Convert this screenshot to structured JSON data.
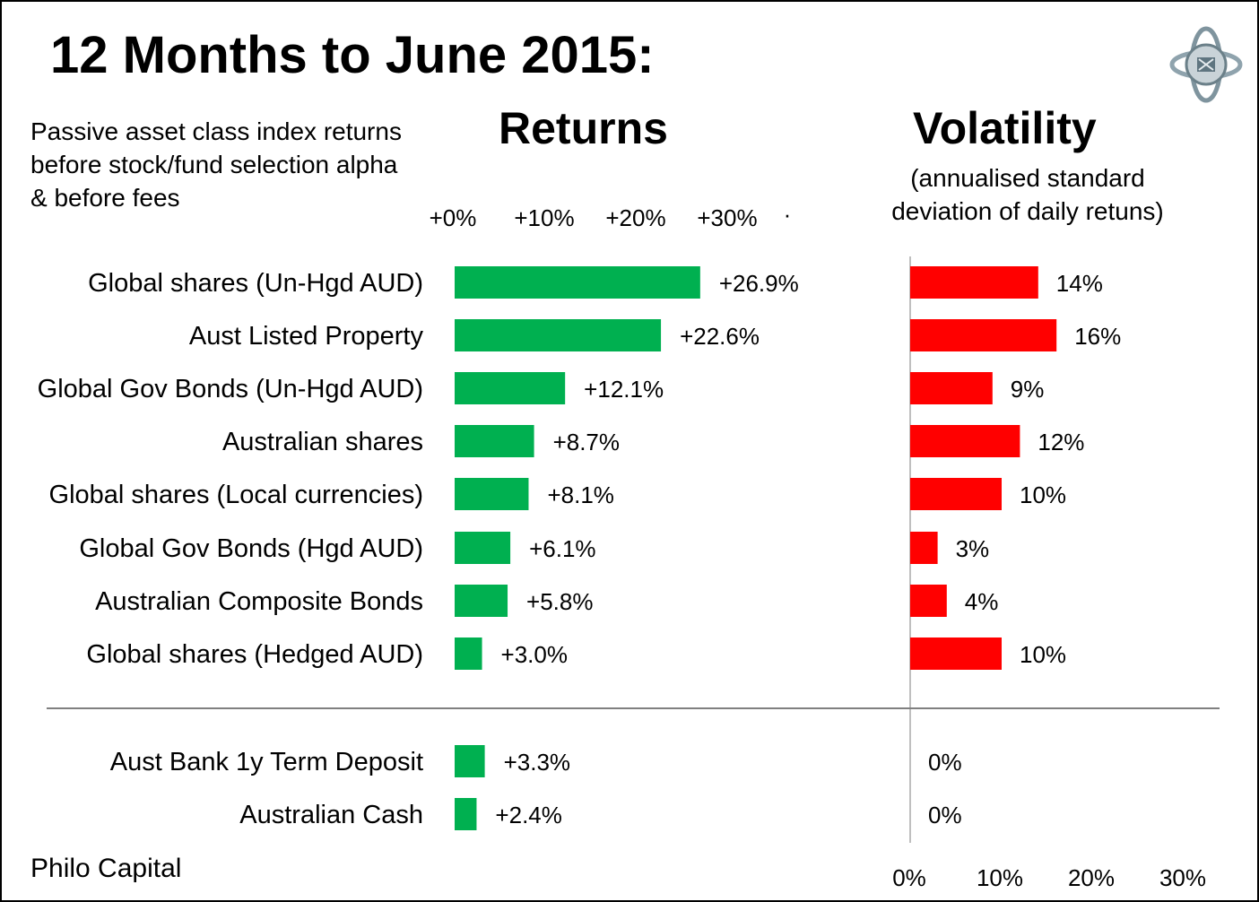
{
  "title": "12 Months to June 2015:",
  "subtitle": "Passive asset class index returns before stock/fund selection alpha & before fees",
  "footer": "Philo Capital",
  "chart_data": [
    {
      "type": "bar",
      "orientation": "horizontal",
      "title": "Returns",
      "color": "#00b050",
      "categories": [
        "Global shares (Un-Hgd AUD)",
        "Aust Listed Property",
        "Global Gov Bonds (Un-Hgd AUD)",
        "Australian shares",
        "Global shares (Local currencies)",
        "Global Gov Bonds (Hgd AUD)",
        "Australian Composite Bonds",
        "Global shares (Hedged AUD)",
        "Aust Bank 1y Term Deposit",
        "Australian Cash"
      ],
      "values": [
        26.9,
        22.6,
        12.1,
        8.7,
        8.1,
        6.1,
        5.8,
        3.0,
        3.3,
        2.4
      ],
      "data_labels": [
        "+26.9%",
        "+22.6%",
        "+12.1%",
        "+8.7%",
        "+8.1%",
        "+6.1%",
        "+5.8%",
        "+3.0%",
        "+3.3%",
        "+2.4%"
      ],
      "ticks": [
        "+0%",
        "+10%",
        "+20%",
        "+30%"
      ],
      "tick_values": [
        0,
        10,
        20,
        30
      ],
      "xlim": [
        0,
        40
      ]
    },
    {
      "type": "bar",
      "orientation": "horizontal",
      "title": "Volatility",
      "subtitle": "(annualised standard deviation of daily retuns)",
      "color": "#ff0000",
      "categories": [
        "Global shares (Un-Hgd AUD)",
        "Aust Listed Property",
        "Global Gov Bonds (Un-Hgd AUD)",
        "Australian shares",
        "Global shares (Local currencies)",
        "Global Gov Bonds (Hgd AUD)",
        "Australian Composite Bonds",
        "Global shares (Hedged AUD)",
        "Aust Bank 1y Term Deposit",
        "Australian Cash"
      ],
      "values": [
        14,
        16,
        9,
        12,
        10,
        3,
        4,
        10,
        0,
        0
      ],
      "data_labels": [
        "14%",
        "16%",
        "9%",
        "12%",
        "10%",
        "3%",
        "4%",
        "10%",
        "0%",
        "0%"
      ],
      "ticks": [
        "0%",
        "10%",
        "20%",
        "30%"
      ],
      "tick_values": [
        0,
        10,
        20,
        30
      ],
      "xlim": [
        0,
        33
      ]
    }
  ]
}
